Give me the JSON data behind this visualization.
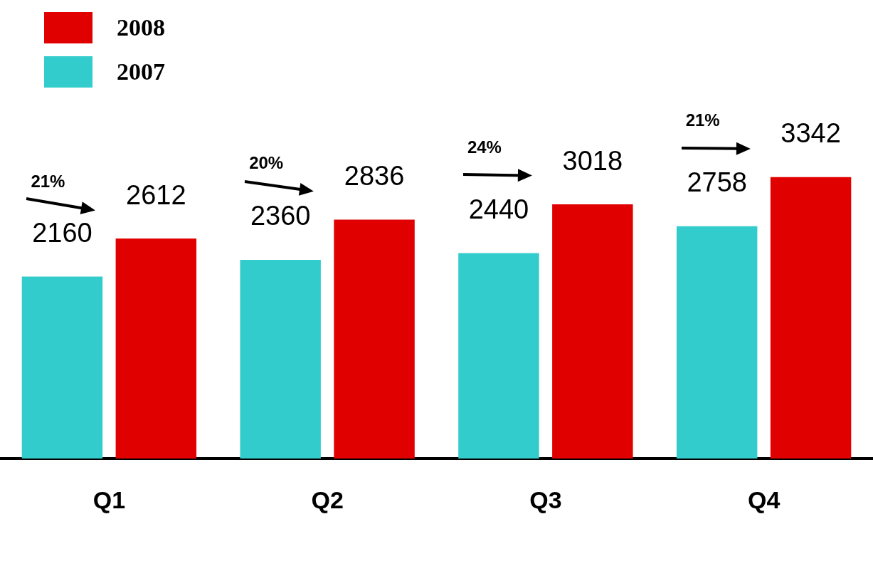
{
  "chart_data": {
    "type": "bar",
    "categories": [
      "Q1",
      "Q2",
      "Q3",
      "Q4"
    ],
    "series": [
      {
        "name": "2007",
        "color": "#33cccc",
        "values": [
          2160,
          2360,
          2440,
          2758
        ]
      },
      {
        "name": "2008",
        "color": "#e00000",
        "values": [
          2612,
          2836,
          3018,
          3342
        ]
      }
    ],
    "data_labels": true,
    "legend": "top left",
    "annotations": [
      "21%",
      "20%",
      "24%",
      "21%"
    ]
  }
}
